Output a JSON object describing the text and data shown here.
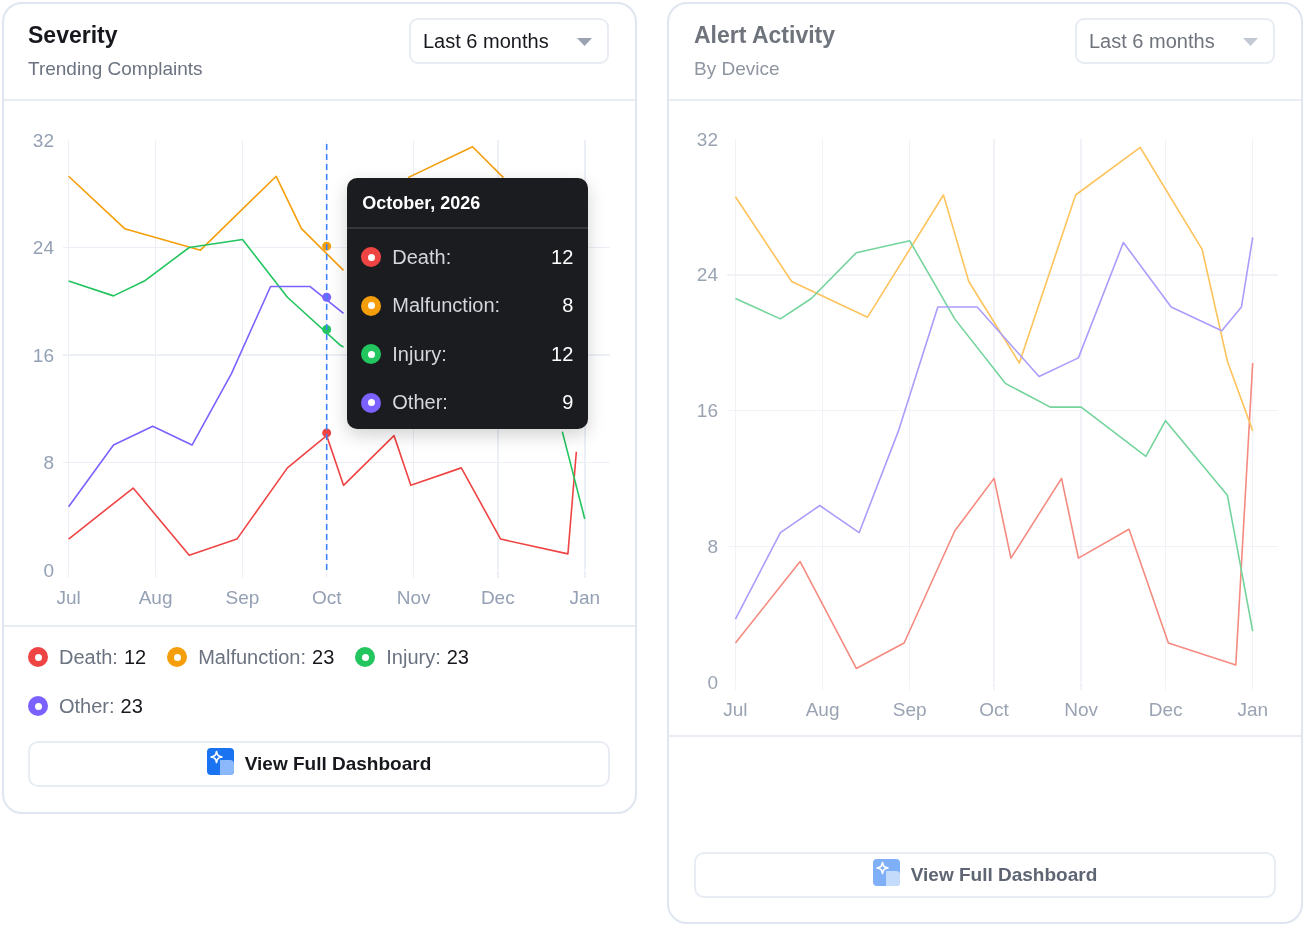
{
  "chart_data": [
    {
      "type": "line",
      "title": "Severity",
      "subtitle": "Trending Complaints",
      "xlim": [
        "2026-06-29",
        "2027-01-10"
      ],
      "xticks": [
        {
          "value": "2026-07-01",
          "label": "Jul"
        },
        {
          "value": "2026-08-01",
          "label": "Aug"
        },
        {
          "value": "2026-09-01",
          "label": "Sep"
        },
        {
          "value": "2026-10-01",
          "label": "Oct"
        },
        {
          "value": "2026-11-01",
          "label": "Nov"
        },
        {
          "value": "2026-12-01",
          "label": "Dec"
        },
        {
          "value": "2027-01-01",
          "label": "Jan"
        }
      ],
      "ylim": [
        0,
        32
      ],
      "yticks": [
        0,
        8,
        16,
        24,
        32
      ],
      "grid": true,
      "legend": "bottom",
      "series": [
        {
          "name": "Death: 12",
          "color": "#ef4444",
          "x": [
            "2026-07-01",
            "2026-07-24",
            "2026-08-13",
            "2026-08-30",
            "2026-09-17",
            "2026-10-01",
            "2026-10-07",
            "2026-10-25",
            "2026-10-31",
            "2026-11-18",
            "2026-12-02",
            "2026-12-26",
            "2026-12-29"
          ],
          "values": [
            2.3,
            6.1,
            1.1,
            2.3,
            7.6,
            10.0,
            6.3,
            10.0,
            6.3,
            7.6,
            2.3,
            1.2,
            8.8
          ]
        },
        {
          "name": "Malfunction: 23",
          "color": "#f59e0b",
          "x": [
            "2026-07-01",
            "2026-07-21",
            "2026-08-17",
            "2026-09-13",
            "2026-09-22",
            "2026-10-07",
            "2026-10-15",
            "2026-10-30",
            "2026-11-22",
            "2026-12-03"
          ],
          "values": [
            29.3,
            25.4,
            23.8,
            29.3,
            25.4,
            22.3,
            null,
            29.2,
            31.5,
            29.2
          ]
        },
        {
          "name": "Injury: 23",
          "color": "#22c55e",
          "x": [
            "2026-07-01",
            "2026-07-17",
            "2026-07-28",
            "2026-08-13",
            "2026-09-01",
            "2026-09-17",
            "2026-10-06",
            "2026-10-07",
            "2026-11-15",
            "2026-12-24",
            "2027-01-01"
          ],
          "values": [
            21.5,
            20.4,
            21.5,
            24.0,
            24.6,
            20.3,
            16.7,
            16.6,
            null,
            10.3,
            3.8
          ]
        },
        {
          "name": "Other: 23",
          "color": "#7b61ff",
          "x": [
            "2026-07-01",
            "2026-07-17",
            "2026-07-31",
            "2026-08-14",
            "2026-08-28",
            "2026-09-11",
            "2026-09-25",
            "2026-10-07"
          ],
          "values": [
            4.7,
            9.3,
            10.7,
            9.3,
            14.6,
            21.1,
            21.1,
            19.1
          ]
        },
        {
          "type": "scatter",
          "colors": [
            "#ef4444",
            "#f59e0b",
            "#22c55e",
            "#7b61ff"
          ],
          "x": [
            "2026-10-01",
            "2026-10-01",
            "2026-10-01",
            "2026-10-01"
          ],
          "values": [
            10.2,
            24.1,
            17.9,
            20.3
          ]
        }
      ],
      "ref_lines": [
        {
          "axis": "x",
          "value": "2026-10-01",
          "color": "#3b82f6",
          "line_style": "dashed"
        }
      ],
      "annotations": [
        "Last 6 months",
        "View Full Dashboard",
        "October, 2026",
        "Death:",
        "12",
        "Malfunction:",
        "8",
        "Injury:",
        "12",
        "Other:",
        "9"
      ]
    },
    {
      "type": "line",
      "title": "Alert Activity",
      "subtitle": "By Device",
      "xlim": [
        "2026-06-28",
        "2027-01-10"
      ],
      "xticks": [
        {
          "value": "2026-07-01",
          "label": "Jul"
        },
        {
          "value": "2026-08-01",
          "label": "Aug"
        },
        {
          "value": "2026-09-01",
          "label": "Sep"
        },
        {
          "value": "2026-10-01",
          "label": "Oct"
        },
        {
          "value": "2026-11-01",
          "label": "Nov"
        },
        {
          "value": "2026-12-01",
          "label": "Dec"
        },
        {
          "value": "2027-01-01",
          "label": "Jan"
        }
      ],
      "ylim": [
        0,
        32
      ],
      "yticks": [
        0,
        8,
        16,
        24,
        32
      ],
      "grid": true,
      "series": [
        {
          "color": "#f58a80",
          "x": [
            "2026-07-01",
            "2026-07-24",
            "2026-08-13",
            "2026-08-30",
            "2026-09-17",
            "2026-10-01",
            "2026-10-07",
            "2026-10-25",
            "2026-10-31",
            "2026-11-18",
            "2026-12-02",
            "2026-12-26",
            "2027-01-01"
          ],
          "values": [
            2.3,
            7.1,
            0.8,
            2.3,
            8.9,
            12.0,
            7.3,
            12.0,
            7.3,
            9.0,
            2.3,
            1.0,
            18.8
          ]
        },
        {
          "color": "#fdc35d",
          "x": [
            "2026-07-01",
            "2026-07-21",
            "2026-08-17",
            "2026-09-13",
            "2026-09-22",
            "2026-10-10",
            "2026-10-30",
            "2026-11-22",
            "2026-12-14",
            "2026-12-23",
            "2027-01-01"
          ],
          "values": [
            28.6,
            23.6,
            21.5,
            28.7,
            23.6,
            18.8,
            28.7,
            31.5,
            25.5,
            18.9,
            14.8
          ]
        },
        {
          "color": "#74d49c",
          "x": [
            "2026-07-01",
            "2026-07-17",
            "2026-07-28",
            "2026-08-13",
            "2026-09-01",
            "2026-09-17",
            "2026-10-05",
            "2026-10-21",
            "2026-11-01",
            "2026-11-24",
            "2026-12-01",
            "2026-12-23",
            "2027-01-01"
          ],
          "values": [
            22.6,
            21.4,
            22.6,
            25.3,
            26.0,
            21.4,
            17.6,
            16.2,
            16.2,
            13.3,
            15.4,
            11.0,
            3.0
          ]
        },
        {
          "color": "#aa9dfb",
          "x": [
            "2026-07-01",
            "2026-07-17",
            "2026-07-31",
            "2026-08-14",
            "2026-08-28",
            "2026-09-11",
            "2026-09-25",
            "2026-10-17",
            "2026-10-31",
            "2026-11-16",
            "2026-12-03",
            "2026-12-21",
            "2026-12-28",
            "2027-01-01"
          ],
          "values": [
            3.7,
            8.8,
            10.4,
            8.8,
            14.8,
            22.1,
            22.1,
            18.0,
            19.1,
            25.9,
            22.1,
            20.7,
            22.1,
            26.2
          ]
        }
      ],
      "annotations": [
        "Last 6 months",
        "View Full Dashboard"
      ]
    }
  ]
}
